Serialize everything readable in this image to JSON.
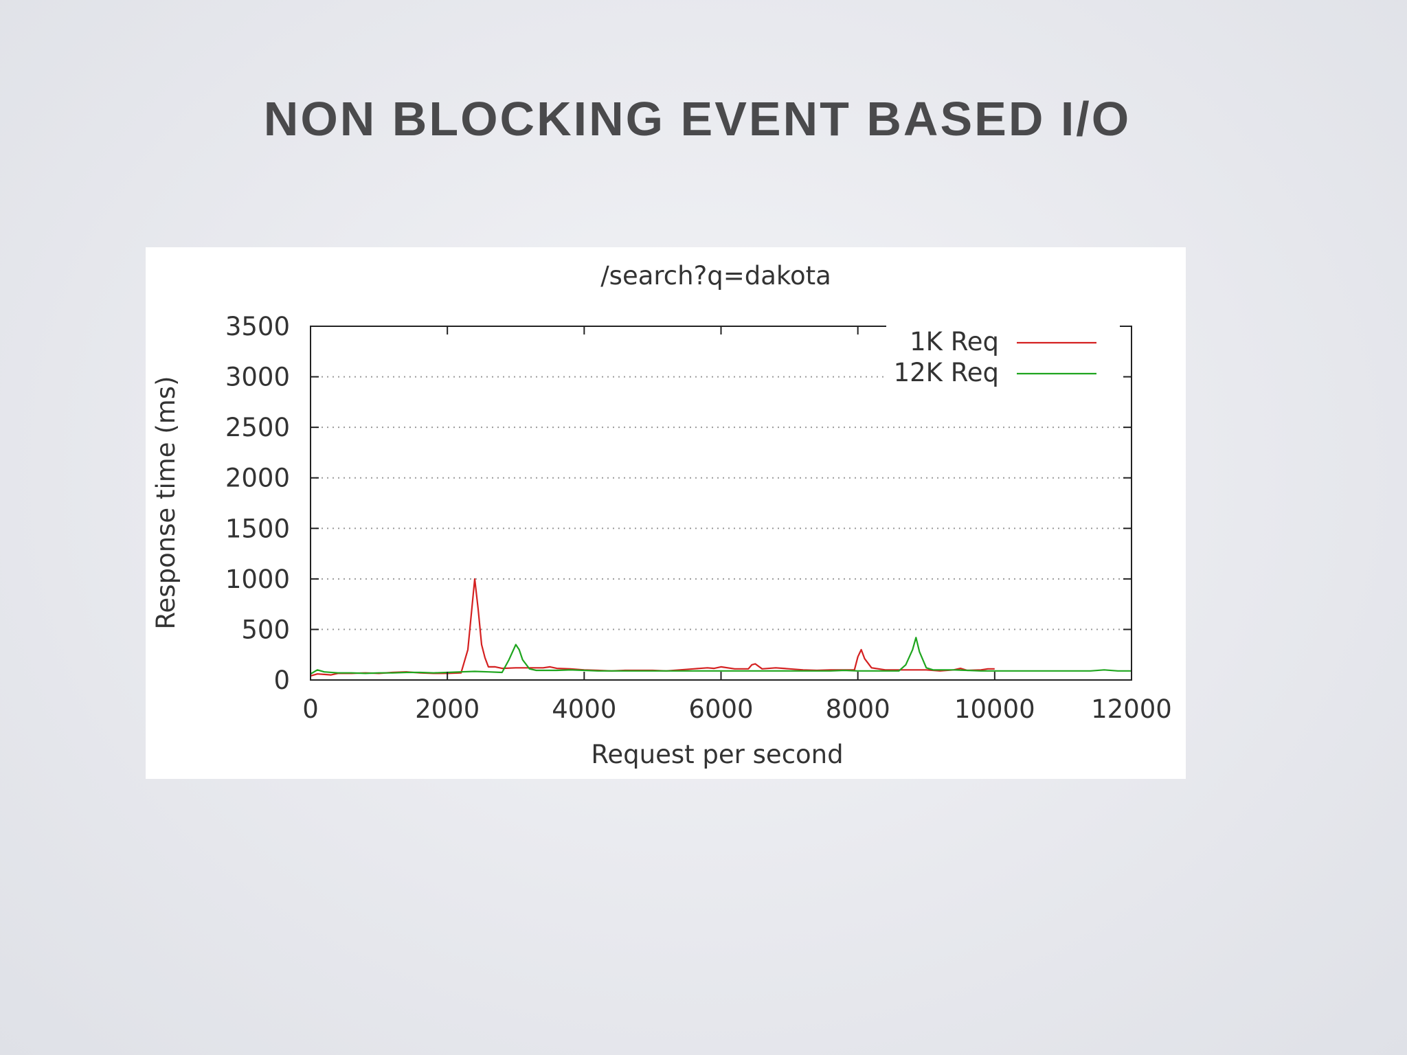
{
  "slide": {
    "title": "NON BLOCKING EVENT BASED I/O"
  },
  "colors": {
    "series_1k": "#d42020",
    "series_12k": "#1ea51e",
    "grid": "#9a9a9a",
    "axis": "#222222",
    "title_text": "#4a4a4c"
  },
  "chart_data": {
    "type": "line",
    "title": "/search?q=dakota",
    "xlabel": "Request per second",
    "ylabel": "Response time (ms)",
    "xlim": [
      0,
      12000
    ],
    "ylim": [
      0,
      3500
    ],
    "xticks": [
      0,
      2000,
      4000,
      6000,
      8000,
      10000,
      12000
    ],
    "yticks": [
      0,
      500,
      1000,
      1500,
      2000,
      2500,
      3000,
      3500
    ],
    "grid": "horizontal-dotted",
    "legend_position": "top-right",
    "series": [
      {
        "name": "1K Req",
        "color": "#d42020",
        "x": [
          0,
          100,
          200,
          300,
          400,
          600,
          800,
          1000,
          1200,
          1400,
          1600,
          1800,
          2000,
          2200,
          2300,
          2350,
          2400,
          2450,
          2500,
          2550,
          2600,
          2700,
          2800,
          3000,
          3200,
          3400,
          3500,
          3600,
          3800,
          4000,
          4200,
          4400,
          4600,
          4800,
          5000,
          5200,
          5400,
          5600,
          5800,
          5900,
          6000,
          6200,
          6400,
          6450,
          6500,
          6600,
          6800,
          7000,
          7200,
          7400,
          7600,
          7800,
          7950,
          8000,
          8050,
          8100,
          8200,
          8400,
          8600,
          8800,
          9000,
          9200,
          9400,
          9500,
          9600,
          9800,
          9900,
          10000
        ],
        "y": [
          40,
          60,
          55,
          50,
          65,
          65,
          70,
          65,
          75,
          80,
          70,
          65,
          65,
          70,
          300,
          650,
          1000,
          700,
          350,
          220,
          130,
          130,
          115,
          120,
          120,
          120,
          130,
          115,
          110,
          100,
          95,
          90,
          95,
          95,
          95,
          90,
          100,
          110,
          120,
          115,
          130,
          110,
          110,
          150,
          160,
          110,
          120,
          110,
          100,
          95,
          100,
          100,
          100,
          230,
          300,
          210,
          120,
          100,
          100,
          100,
          100,
          90,
          100,
          115,
          95,
          100,
          110,
          110
        ]
      },
      {
        "name": "12K Req",
        "color": "#1ea51e",
        "x": [
          0,
          100,
          200,
          400,
          600,
          800,
          1000,
          1200,
          1400,
          1600,
          1800,
          2000,
          2200,
          2400,
          2600,
          2800,
          2900,
          3000,
          3050,
          3100,
          3200,
          3300,
          3400,
          3600,
          3800,
          4000,
          4200,
          4400,
          4600,
          4800,
          5000,
          5200,
          5400,
          5600,
          5800,
          6000,
          6200,
          6400,
          6600,
          6800,
          7000,
          7200,
          7400,
          7600,
          7800,
          8000,
          8200,
          8400,
          8600,
          8700,
          8800,
          8850,
          8900,
          9000,
          9100,
          9200,
          9400,
          9600,
          9800,
          10000,
          10400,
          10800,
          11000,
          11200,
          11400,
          11600,
          11800,
          12000
        ],
        "y": [
          60,
          100,
          80,
          70,
          70,
          65,
          70,
          70,
          75,
          75,
          70,
          75,
          80,
          85,
          80,
          75,
          200,
          350,
          300,
          200,
          110,
          95,
          95,
          95,
          100,
          95,
          90,
          90,
          90,
          90,
          90,
          90,
          90,
          90,
          90,
          90,
          90,
          90,
          90,
          90,
          90,
          90,
          90,
          90,
          95,
          90,
          90,
          90,
          90,
          150,
          300,
          420,
          280,
          120,
          100,
          100,
          100,
          95,
          90,
          90,
          90,
          90,
          90,
          90,
          90,
          100,
          90,
          90
        ]
      }
    ]
  }
}
